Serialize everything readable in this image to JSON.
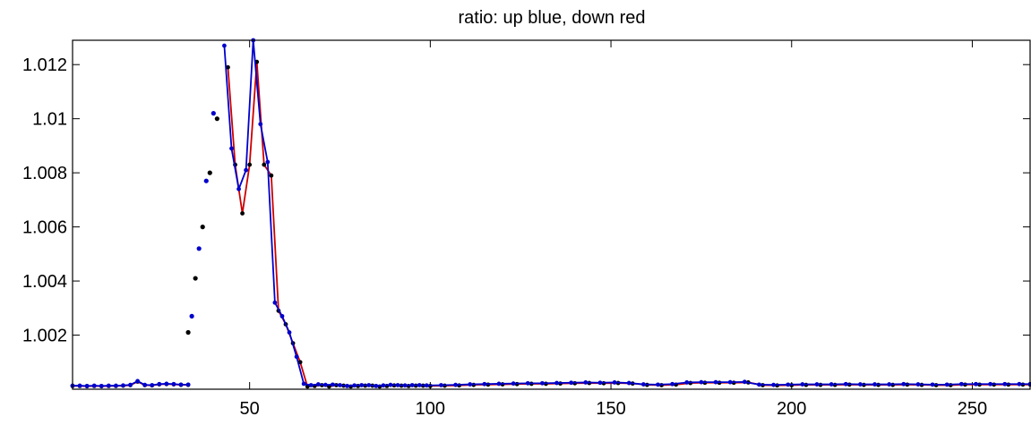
{
  "chart_data": {
    "type": "line",
    "title": "ratio: up blue, down red",
    "xlabel": "",
    "ylabel": "",
    "xlim": [
      1,
      266
    ],
    "ylim": [
      1.0,
      1.0129
    ],
    "grid": false,
    "legend": "none",
    "x_ticks": [
      50,
      100,
      150,
      200,
      250
    ],
    "x_tick_labels": [
      "50",
      "100",
      "150",
      "200",
      "250"
    ],
    "y_ticks": [
      1.002,
      1.004,
      1.006,
      1.008,
      1.01,
      1.012
    ],
    "y_tick_labels": [
      "1.002",
      "1.004",
      "1.006",
      "1.008",
      "1.01",
      "1.012"
    ],
    "series": [
      {
        "color": "#cc0000",
        "marker_color": "#000000",
        "segments": [
          {
            "x": [
              1,
              3,
              5,
              7,
              9,
              11,
              13,
              15,
              17,
              19,
              21,
              23,
              25,
              27,
              29,
              31,
              33
            ],
            "y": [
              1.00012,
              1.00012,
              1.00011,
              1.00012,
              1.00011,
              1.00012,
              1.00012,
              1.00013,
              1.00015,
              1.00028,
              1.00015,
              1.00014,
              1.00018,
              1.00019,
              1.00018,
              1.00016,
              1.00016
            ]
          },
          {
            "x": [
              44,
              46,
              48,
              50,
              52,
              54,
              56,
              58,
              60,
              62,
              64,
              66,
              68,
              70,
              72,
              74,
              76,
              78,
              80,
              82,
              84,
              86,
              88,
              90,
              92,
              94,
              96,
              98,
              100,
              104,
              108,
              112,
              116,
              120,
              124,
              128,
              132,
              136,
              140,
              144,
              148,
              152,
              156,
              160,
              164,
              168,
              172,
              176,
              180,
              184,
              188,
              192,
              196,
              200,
              204,
              208,
              212,
              216,
              220,
              224,
              228,
              232,
              236,
              240,
              244,
              248,
              252,
              256,
              260,
              264,
              266
            ],
            "y": [
              1.0119,
              1.0083,
              1.0065,
              1.0083,
              1.0121,
              1.0083,
              1.0079,
              1.0029,
              1.0024,
              1.0017,
              1.001,
              1.0001,
              1.00012,
              1.00015,
              1.0001,
              1.00015,
              1.00013,
              1.0001,
              1.00012,
              1.00013,
              1.00013,
              1.0001,
              1.00012,
              1.00014,
              1.00013,
              1.00012,
              1.00013,
              1.00013,
              1.00012,
              1.00013,
              1.00014,
              1.00016,
              1.00017,
              1.00018,
              1.00019,
              1.0002,
              1.0002,
              1.00021,
              1.00022,
              1.00023,
              1.00022,
              1.00023,
              1.00021,
              1.00016,
              1.00015,
              1.00017,
              1.00023,
              1.00024,
              1.00024,
              1.00024,
              1.00025,
              1.00015,
              1.00014,
              1.00015,
              1.00016,
              1.00016,
              1.00016,
              1.00017,
              1.00016,
              1.00016,
              1.00016,
              1.00017,
              1.00016,
              1.00015,
              1.00015,
              1.00017,
              1.00017,
              1.00017,
              1.00017,
              1.00017,
              1.00017
            ]
          }
        ],
        "isolated_points": {
          "x": [
            33,
            35,
            37,
            39,
            41
          ],
          "y": [
            1.0021,
            1.0041,
            1.006,
            1.008,
            1.01
          ]
        }
      },
      {
        "color": "#0000cc",
        "marker_color": "#0000cc",
        "segments": [
          {
            "x": [
              1,
              3,
              5,
              7,
              9,
              11,
              13,
              15,
              17,
              19,
              21,
              23,
              25,
              27,
              29,
              31,
              33
            ],
            "y": [
              1.00013,
              1.00013,
              1.00012,
              1.00013,
              1.00012,
              1.00013,
              1.00013,
              1.00014,
              1.00016,
              1.0003,
              1.00016,
              1.00015,
              1.00019,
              1.0002,
              1.00019,
              1.00017,
              1.00017
            ]
          },
          {
            "x": [
              43,
              45,
              47,
              49,
              51,
              53,
              55,
              57,
              59,
              61,
              63,
              65,
              67,
              69,
              71,
              73,
              75,
              77,
              79,
              81,
              83,
              85,
              87,
              89,
              91,
              93,
              95,
              97,
              99,
              103,
              107,
              111,
              115,
              119,
              123,
              127,
              131,
              135,
              139,
              143,
              147,
              151,
              155,
              159,
              163,
              167,
              171,
              175,
              179,
              183,
              187,
              191,
              195,
              199,
              203,
              207,
              211,
              215,
              219,
              223,
              227,
              231,
              235,
              239,
              243,
              247,
              251,
              255,
              259,
              263,
              266
            ],
            "y": [
              1.0127,
              1.0089,
              1.0074,
              1.0081,
              1.0129,
              1.0098,
              1.0084,
              1.0032,
              1.0027,
              1.0021,
              1.0012,
              1.0002,
              1.00015,
              1.00018,
              1.00016,
              1.00017,
              1.00015,
              1.00012,
              1.00014,
              1.00015,
              1.00015,
              1.00012,
              1.00014,
              1.00016,
              1.00015,
              1.00014,
              1.00015,
              1.00015,
              1.00014,
              1.00015,
              1.00016,
              1.00018,
              1.00019,
              1.0002,
              1.00021,
              1.00022,
              1.00022,
              1.00023,
              1.00024,
              1.00025,
              1.00024,
              1.00025,
              1.00023,
              1.00018,
              1.00017,
              1.00019,
              1.00025,
              1.00026,
              1.00026,
              1.00026,
              1.00027,
              1.00017,
              1.00016,
              1.00017,
              1.00018,
              1.00018,
              1.00018,
              1.00019,
              1.00018,
              1.00018,
              1.00018,
              1.00019,
              1.00018,
              1.00017,
              1.00017,
              1.00019,
              1.00019,
              1.00019,
              1.00019,
              1.00019,
              1.00019
            ]
          }
        ],
        "isolated_points": {
          "x": [
            34,
            36,
            38,
            40
          ],
          "y": [
            1.0027,
            1.0052,
            1.0077,
            1.0102
          ]
        }
      }
    ]
  }
}
